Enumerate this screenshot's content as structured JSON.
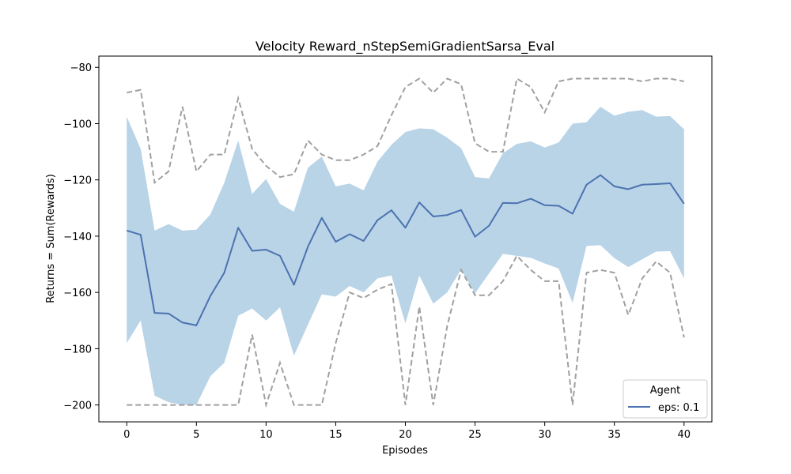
{
  "chart_data": {
    "type": "line",
    "title": "Velocity Reward_nStepSemiGradientSarsa_Eval",
    "xlabel": "Episodes",
    "ylabel": "Returns = Sum(Rewards)",
    "xlim": [
      -2,
      42
    ],
    "ylim": [
      -206,
      -76
    ],
    "x_ticks": [
      0,
      5,
      10,
      15,
      20,
      25,
      30,
      35,
      40
    ],
    "y_ticks": [
      -200,
      -180,
      -160,
      -140,
      -120,
      -100,
      -80
    ],
    "grid": false,
    "legend": {
      "title": "Agent",
      "placement": "lower-right"
    },
    "x": [
      0,
      1,
      2,
      3,
      4,
      5,
      6,
      7,
      8,
      9,
      10,
      11,
      12,
      13,
      14,
      15,
      16,
      17,
      18,
      19,
      20,
      21,
      22,
      23,
      24,
      25,
      26,
      27,
      28,
      29,
      30,
      31,
      32,
      33,
      34,
      35,
      36,
      37,
      38,
      39,
      40
    ],
    "series": [
      {
        "name": "eps: 0.1",
        "color": "#4c72b0",
        "values": [
          -138,
          -139.5,
          -167.3,
          -167.5,
          -170.7,
          -171.7,
          -161.3,
          -153,
          -137,
          -145.2,
          -144.8,
          -147,
          -157.3,
          -143.8,
          -133.5,
          -142,
          -139.3,
          -141.7,
          -134.3,
          -130.8,
          -137,
          -128,
          -133,
          -132.5,
          -130.7,
          -140.2,
          -136.3,
          -128.2,
          -128.3,
          -126.7,
          -129,
          -129.2,
          -132,
          -121.7,
          -118.3,
          -122.3,
          -123.3,
          -121.7,
          -121.5,
          -121.2,
          -128.5
        ]
      },
      {
        "name": "std_upper",
        "role": "band",
        "color": "#b9d4e7",
        "values": [
          -97.5,
          -109,
          -138,
          -135.7,
          -138,
          -137.7,
          -132.3,
          -121,
          -106,
          -125,
          -119.7,
          -128.5,
          -131.3,
          -115.7,
          -111.7,
          -122.3,
          -121.3,
          -123.7,
          -113.5,
          -107.5,
          -103,
          -101.7,
          -102,
          -105,
          -108.7,
          -119,
          -119.5,
          -110.5,
          -107.2,
          -106.3,
          -108.5,
          -106.7,
          -100,
          -99.5,
          -94,
          -97.2,
          -95.8,
          -95.2,
          -97.5,
          -97.3,
          -102
        ]
      },
      {
        "name": "std_lower",
        "role": "band",
        "color": "#b9d4e7",
        "values": [
          -178,
          -170,
          -196.7,
          -199,
          -200,
          -200,
          -189.8,
          -185,
          -168.3,
          -165.7,
          -170,
          -165.3,
          -182.5,
          -171.5,
          -160.7,
          -161.5,
          -157.7,
          -160,
          -155,
          -154,
          -171,
          -154,
          -164,
          -160,
          -151.8,
          -160.3,
          -153.3,
          -146.3,
          -147,
          -147.7,
          -149.7,
          -151.5,
          -163.7,
          -143.5,
          -143.2,
          -147.8,
          -151,
          -148.2,
          -145.5,
          -145.3,
          -155
        ]
      },
      {
        "name": "max",
        "role": "envelope",
        "color": "#a0a0a0",
        "values": [
          -89,
          -88,
          -121,
          -117,
          -94,
          -117,
          -111,
          -111,
          -91,
          -109,
          -115,
          -119,
          -118,
          -106,
          -111,
          -113,
          -113,
          -111,
          -108,
          -97,
          -87,
          -84,
          -89,
          -84,
          -86,
          -107,
          -110,
          -110,
          -84,
          -87,
          -96,
          -85,
          -84,
          -84,
          -84,
          -84,
          -84,
          -85,
          -84,
          -84,
          -85
        ]
      },
      {
        "name": "min",
        "role": "envelope",
        "color": "#a0a0a0",
        "values": [
          -200,
          -200,
          -200,
          -200,
          -200,
          -200,
          -200,
          -200,
          -200,
          -175,
          -200,
          -185,
          -200,
          -200,
          -200,
          -178,
          -160,
          -162,
          -159,
          -157,
          -200,
          -165,
          -200,
          -172,
          -152,
          -161,
          -161,
          -156,
          -147,
          -152,
          -156,
          -156,
          -200,
          -153,
          -152,
          -153,
          -168,
          -155,
          -149,
          -153,
          -176
        ]
      }
    ]
  }
}
